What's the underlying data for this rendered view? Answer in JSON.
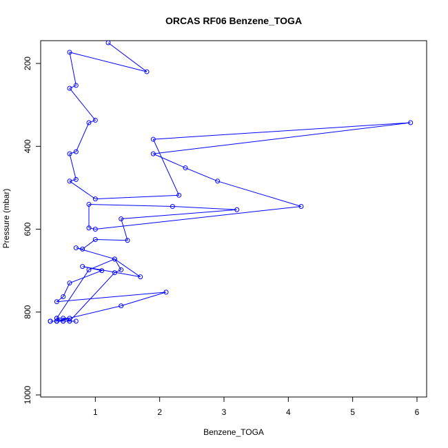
{
  "chart_data": {
    "type": "line",
    "title": "ORCAS RF06 Benzene_TOGA",
    "xlabel": "Benzene_TOGA",
    "ylabel": "Pressure (mbar)",
    "xlim": [
      0.15,
      6.15
    ],
    "ylim": [
      1005,
      145
    ],
    "y_reversed": true,
    "grid": false,
    "series_color": "#0000ff",
    "x_ticks": [
      {
        "value": 1,
        "label": "1"
      },
      {
        "value": 2,
        "label": "2"
      },
      {
        "value": 3,
        "label": "3"
      },
      {
        "value": 4,
        "label": "4"
      },
      {
        "value": 5,
        "label": "5"
      },
      {
        "value": 6,
        "label": "6"
      }
    ],
    "y_ticks": [
      {
        "value": 200,
        "label": "200"
      },
      {
        "value": 400,
        "label": "400"
      },
      {
        "value": 600,
        "label": "600"
      },
      {
        "value": 800,
        "label": "800"
      },
      {
        "value": 1000,
        "label": "1000"
      }
    ],
    "series": [
      {
        "x": [
          0.3,
          0.4,
          0.5,
          0.3,
          0.6,
          0.4,
          0.7,
          0.3,
          0.4,
          0.5,
          0.4,
          0.6,
          0.4,
          1.4,
          2.1,
          0.4,
          0.5,
          0.6,
          1.1,
          0.8,
          1.7,
          1.3,
          0.9,
          0.4,
          0.5,
          0.6,
          1.3,
          1.4,
          1.3,
          0.7,
          0.8,
          1.0,
          1.5,
          1.4,
          3.2,
          2.2,
          0.9,
          0.9,
          1.0,
          4.2,
          2.9,
          2.4,
          1.9,
          5.9,
          1.9,
          2.3,
          1.0,
          0.6,
          0.7,
          0.6,
          0.7,
          0.9,
          1.0,
          0.6,
          0.7,
          0.6,
          1.8,
          1.2
        ],
        "y": [
          822,
          822,
          822,
          822,
          822,
          822,
          822,
          822,
          822,
          822,
          815,
          815,
          822,
          785,
          752,
          775,
          763,
          730,
          700,
          690,
          715,
          672,
          698,
          815,
          815,
          822,
          705,
          698,
          672,
          645,
          648,
          625,
          627,
          575,
          553,
          545,
          540,
          597,
          600,
          545,
          484,
          452,
          418,
          343,
          383,
          518,
          527,
          484,
          480,
          418,
          413,
          343,
          337,
          260,
          253,
          173,
          220,
          150
        ]
      }
    ]
  }
}
